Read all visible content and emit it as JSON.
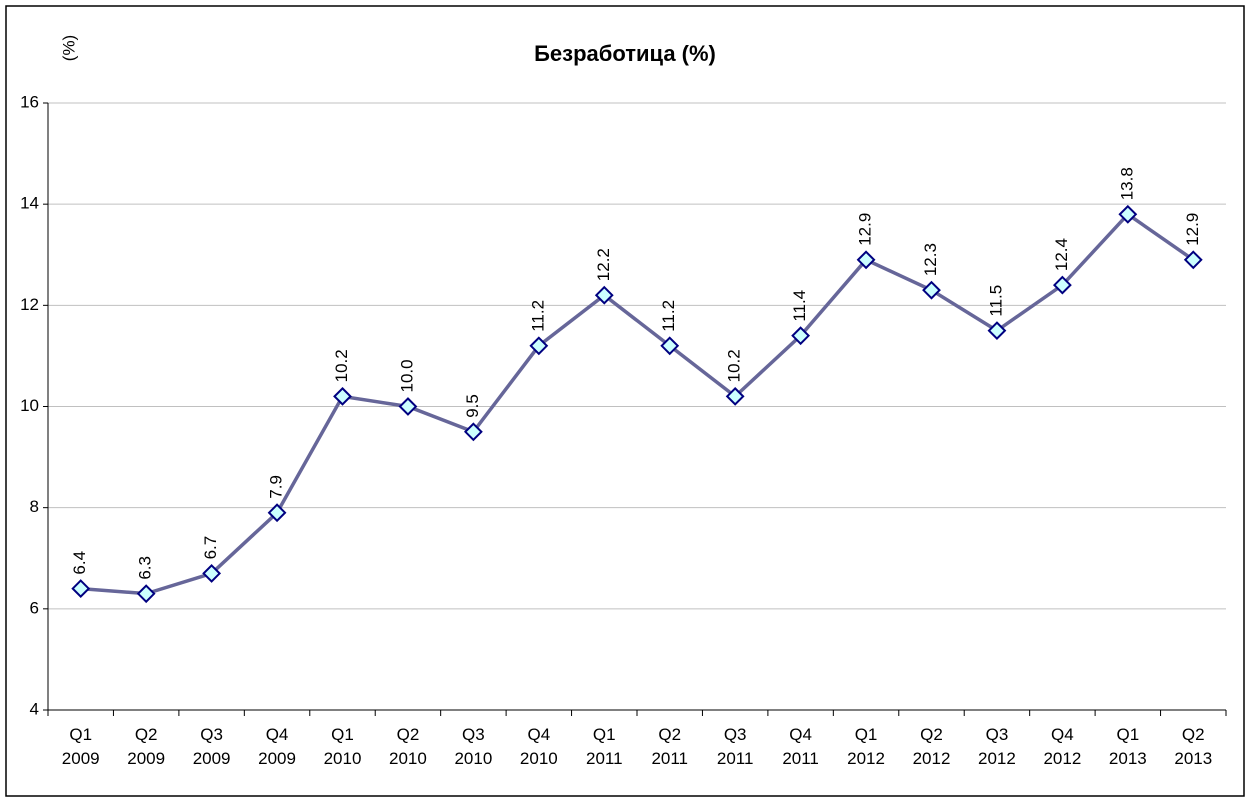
{
  "chart_data": {
    "type": "line",
    "title": "Безработица (%)",
    "y_label": "(%)",
    "categories": [
      "Q1 2009",
      "Q2 2009",
      "Q3 2009",
      "Q4 2009",
      "Q1 2010",
      "Q2 2010",
      "Q3 2010",
      "Q4 2010",
      "Q1 2011",
      "Q2 2011",
      "Q3 2011",
      "Q4 2011",
      "Q1 2012",
      "Q2 2012",
      "Q3 2012",
      "Q4 2012",
      "Q1 2013",
      "Q2 2013"
    ],
    "values": [
      6.4,
      6.3,
      6.7,
      7.9,
      10.2,
      10.0,
      9.5,
      11.2,
      12.2,
      11.2,
      10.2,
      11.4,
      12.9,
      12.3,
      11.5,
      12.4,
      13.8,
      12.9
    ],
    "value_labels": [
      "6.4",
      "6.3",
      "6.7",
      "7.9",
      "10.2",
      "10.0",
      "9.5",
      "11.2",
      "12.2",
      "11.2",
      "10.2",
      "11.4",
      "12.9",
      "12.3",
      "11.5",
      "12.4",
      "13.8",
      "12.9"
    ],
    "color": "#666699",
    "marker_fill": "#ccffff",
    "marker_stroke": "#000080",
    "ylim": [
      4,
      16
    ],
    "yticks": [
      4,
      6,
      8,
      10,
      12,
      14,
      16
    ],
    "grid": true
  }
}
